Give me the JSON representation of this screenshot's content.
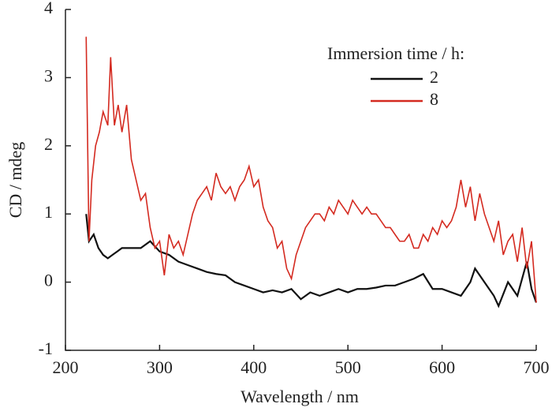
{
  "chart_data": {
    "type": "line",
    "xlabel": "Wavelength / nm",
    "ylabel": "CD / mdeg",
    "legend_title": "Immersion time / h:",
    "legend": "upper right",
    "xlim": [
      200,
      700
    ],
    "ylim": [
      -1,
      4
    ],
    "xticks": [
      200,
      300,
      400,
      500,
      600,
      700
    ],
    "yticks": [
      -1,
      0,
      1,
      2,
      3,
      4
    ],
    "series": [
      {
        "name": "2",
        "color": "#111111",
        "x": [
          222,
          225,
          230,
          235,
          240,
          245,
          250,
          255,
          260,
          270,
          280,
          290,
          300,
          310,
          320,
          330,
          340,
          350,
          360,
          370,
          380,
          390,
          400,
          410,
          420,
          430,
          440,
          450,
          460,
          470,
          480,
          490,
          500,
          510,
          520,
          530,
          540,
          550,
          560,
          570,
          580,
          590,
          600,
          610,
          620,
          630,
          635,
          645,
          655,
          660,
          670,
          680,
          690,
          695,
          700
        ],
        "values": [
          1.0,
          0.6,
          0.7,
          0.5,
          0.4,
          0.35,
          0.4,
          0.45,
          0.5,
          0.5,
          0.5,
          0.6,
          0.45,
          0.4,
          0.3,
          0.25,
          0.2,
          0.15,
          0.12,
          0.1,
          0.0,
          -0.05,
          -0.1,
          -0.15,
          -0.12,
          -0.15,
          -0.1,
          -0.25,
          -0.15,
          -0.2,
          -0.15,
          -0.1,
          -0.15,
          -0.1,
          -0.1,
          -0.08,
          -0.05,
          -0.05,
          0.0,
          0.05,
          0.12,
          -0.1,
          -0.1,
          -0.15,
          -0.2,
          0.0,
          0.2,
          0.0,
          -0.2,
          -0.35,
          0.0,
          -0.2,
          0.3,
          -0.1,
          -0.3
        ]
      },
      {
        "name": "8",
        "color": "#d42a20",
        "x": [
          222,
          225,
          228,
          232,
          236,
          240,
          245,
          248,
          252,
          256,
          260,
          265,
          270,
          275,
          280,
          285,
          290,
          295,
          300,
          305,
          310,
          315,
          320,
          325,
          330,
          335,
          340,
          345,
          350,
          355,
          360,
          365,
          370,
          375,
          380,
          385,
          390,
          395,
          400,
          405,
          410,
          415,
          420,
          425,
          430,
          435,
          440,
          445,
          450,
          455,
          460,
          465,
          470,
          475,
          480,
          485,
          490,
          495,
          500,
          505,
          510,
          515,
          520,
          525,
          530,
          535,
          540,
          545,
          550,
          555,
          560,
          565,
          570,
          575,
          580,
          585,
          590,
          595,
          600,
          605,
          610,
          615,
          620,
          625,
          630,
          635,
          640,
          645,
          650,
          655,
          660,
          665,
          670,
          675,
          680,
          685,
          690,
          695,
          700
        ],
        "values": [
          3.6,
          0.6,
          1.5,
          2.0,
          2.2,
          2.5,
          2.3,
          3.3,
          2.3,
          2.6,
          2.2,
          2.6,
          1.8,
          1.5,
          1.2,
          1.3,
          0.8,
          0.5,
          0.6,
          0.1,
          0.7,
          0.5,
          0.6,
          0.4,
          0.7,
          1.0,
          1.2,
          1.3,
          1.4,
          1.2,
          1.6,
          1.4,
          1.3,
          1.4,
          1.2,
          1.4,
          1.5,
          1.7,
          1.4,
          1.5,
          1.1,
          0.9,
          0.8,
          0.5,
          0.6,
          0.2,
          0.05,
          0.4,
          0.6,
          0.8,
          0.9,
          1.0,
          1.0,
          0.9,
          1.1,
          1.0,
          1.2,
          1.1,
          1.0,
          1.2,
          1.1,
          1.0,
          1.1,
          1.0,
          1.0,
          0.9,
          0.8,
          0.8,
          0.7,
          0.6,
          0.6,
          0.7,
          0.5,
          0.5,
          0.7,
          0.6,
          0.8,
          0.7,
          0.9,
          0.8,
          0.9,
          1.1,
          1.5,
          1.1,
          1.4,
          0.9,
          1.3,
          1.0,
          0.8,
          0.6,
          0.9,
          0.4,
          0.6,
          0.7,
          0.3,
          0.8,
          0.2,
          0.6,
          -0.3
        ]
      }
    ]
  }
}
